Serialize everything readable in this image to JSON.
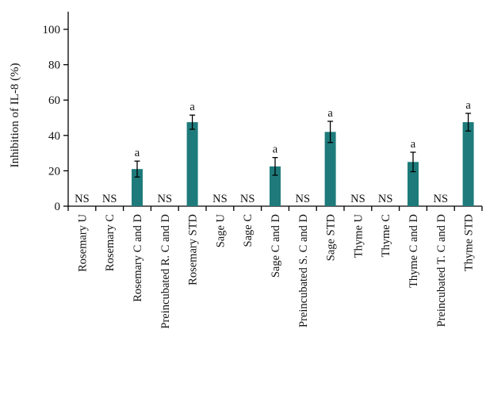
{
  "chart_data": {
    "type": "bar",
    "title": "",
    "xlabel": "",
    "ylabel": "Inhibition of IL-8 (%)",
    "ylim": [
      0,
      110
    ],
    "yticks": [
      0,
      20,
      40,
      60,
      80,
      100
    ],
    "grid": false,
    "bar_color": "#1f7b7b",
    "categories": [
      "Rosemary U",
      "Rosemary C",
      "Rosemary C and D",
      "Preincubated R. C and D",
      "Rosemary STD",
      "Sage U",
      "Sage C",
      "Sage C and D",
      "Preincubated S. C and D",
      "Sage STD",
      "Thyme U",
      "Thyme C",
      "Thyme C and D",
      "Preincubated T. C and D",
      "Thyme STD"
    ],
    "values": [
      0,
      0,
      21,
      0,
      47.5,
      0,
      0,
      22.5,
      0,
      42,
      0,
      0,
      25,
      0,
      47.5
    ],
    "errors": [
      0,
      0,
      4.5,
      0,
      4,
      0,
      0,
      5,
      0,
      6,
      0,
      0,
      5.5,
      0,
      5
    ],
    "annotations": [
      "NS",
      "NS",
      "a",
      "NS",
      "a",
      "NS",
      "NS",
      "a",
      "NS",
      "a",
      "NS",
      "NS",
      "a",
      "NS",
      "a"
    ]
  }
}
